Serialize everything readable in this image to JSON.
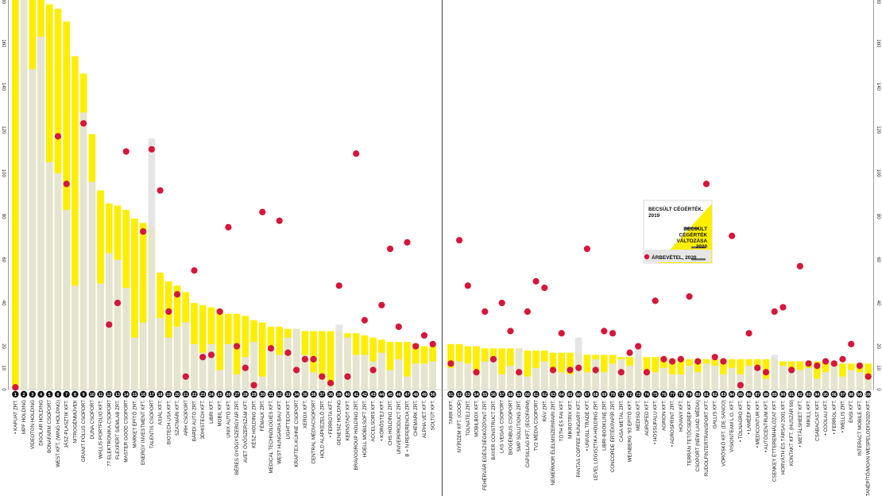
{
  "chart_data": {
    "type": "bar",
    "ylim": [
      0,
      180
    ],
    "yticks": [
      0,
      10,
      20,
      40,
      60,
      80,
      100,
      120,
      140,
      160,
      180
    ],
    "colors": {
      "revenue": "#e3e3e3",
      "value_2019": "#ffee00",
      "value_2020": "#d6163a",
      "divider": "#555555",
      "badge": "#111111"
    },
    "legend": {
      "value_2019": "BECSÜLT CÉGÉRTÉK, 2019",
      "value_2020": "BECSÜLT CÉGÉRTÉK VÁLTOZÁSA 2020",
      "revenue": "ÁRBEVÉTEL, 2020"
    },
    "panels": [
      {
        "start_rank": 1,
        "categories": [
          "• KAPUAT ZRT.",
          "MPF HOLDING",
          "VIDEOTON HOLDING",
          "DIGOLAR HOLDING",
          "BONAFARM CSOPORT",
          "WEST KFT. (WING HOLDING)",
          "JÁSZ-PLASZTIK KFT.",
          "NITROGÉNMŰVEK",
          "GRANIT PÓLUS CSOPORT",
          "DUNA CSOPORT",
          "WALLIS PORTFOLIO KFT.",
          "77 ELEKTRONIKA CSOPORT",
          "FLEXPERT SIEMLAB ZRT.",
          "MASTER GOOD CSOPORT",
          "MARKET ÉPÍTŐ ZRT.",
          "ENERGY INVESTMENT KFT.",
          "TALENTIS CSOPORT",
          "AXIÁL KFT.",
          "BIOTECH USA KFT.",
          "SZATMÁRI KFT.",
          "ARH CSOPORT",
          "BÁRDI AUTÓ ZRT.",
          "3DHISTECH KFT.",
          "LIBRI KFT.",
          "MOBIL KFT.",
          "UNIX AUTÓ KFT.",
          "BÉRES GYÓGYSZERGYÁR ZRT.",
          "AVET ÖVŐSZERSZÁM KFT.",
          "KÉSZ HOLDING ZRT.",
          "FÉMALK ZRT.",
          "MEDICAL TECHNOLOGIES KFT.",
          "WEST HUNGARIA BAU KFT.",
          "LIGHTTECH KFT.",
          "KRAFTEX-KÜHNE CSOPORT",
          "XEROX KFT.",
          "CENTRAL MÉDIACSOPORT",
          "HOLD ALAPKEZELŐ ZRT.",
          "• FERROTA KFT.",
          "GENESIZ HOLDING",
          "KERNSTADT KFT.",
          "BRAVOGROUP HOLDING ZRT.",
          "HOELL MOBILSOFT ZRT.",
          "ACCELSORS KFT.",
          "• KÖRÖSTEJ KFT.",
          "CHS HOLDING ZRT.",
          "UNIVERPRODUCT ZRT.",
          "B + N REFERENCIA ZRT.",
          "CHEMARK ZRT.",
          "ALPHA VET KFT.",
          "SOLTÜT KFT."
        ],
        "revenue": [
          1,
          180,
          148,
          163,
          105,
          100,
          83,
          48,
          128,
          96,
          49,
          63,
          60,
          47,
          24,
          31,
          116,
          33,
          24,
          29,
          31,
          21,
          17,
          21,
          9,
          21,
          7,
          15,
          22,
          6,
          19,
          16,
          24,
          28,
          16,
          8,
          5,
          2,
          30,
          24,
          16,
          16,
          13,
          17,
          9,
          14,
          6,
          12,
          12,
          13
        ],
        "value_2019": [
          180,
          180,
          180,
          180,
          178,
          176,
          170,
          154,
          146,
          118,
          92,
          86,
          85,
          83,
          79,
          77,
          75,
          54,
          50,
          48,
          45,
          40,
          39,
          38,
          37,
          35,
          35,
          34,
          32,
          31,
          29,
          29,
          28,
          28,
          27,
          27,
          27,
          27,
          27,
          26,
          26,
          25,
          24,
          23,
          22,
          22,
          22,
          21,
          20,
          20
        ],
        "value_2020": [
          1,
          180,
          180,
          180,
          180,
          117,
          95,
          180,
          123,
          180,
          180,
          30,
          40,
          110,
          180,
          73,
          111,
          92,
          36,
          44,
          6,
          55,
          15,
          16,
          36,
          75,
          20,
          10,
          2,
          82,
          19,
          78,
          17,
          9,
          14,
          14,
          6,
          3,
          48,
          6,
          109,
          32,
          9,
          39,
          65,
          29,
          68,
          20,
          25,
          21
        ]
      },
      {
        "start_rank": 51,
        "categories": [
          "TARR KFT.",
          "NYÍRZEM KFT. (COOP)",
          "TOLNATEJ ZRT.",
          "MOBILBOX KFT.",
          "FEHÉRVÁR EGÉSZSÉGKÖZPONT ZRT.",
          "BAYER CONSTRUCT ZRT.",
          "LAS VEGAS CSOPORT",
          "BIOGÉNBUS CSOPORT",
          "SMP SOLUTIONS ZRT.",
          "CAPSILLAG KFT. (ECOFARM)",
          "TV2 MÉDIA CSOPORT",
          "RÁV ZRT.",
          "NEMERMOR ÉLELMISZERIPARI ZRT.",
          "TÓTH ÉS FAI KFT.",
          "MIKROTRIX KFT.",
          "PANTAS COFFEE HUNGARY KFT.",
          "• UNIVILL TRADE KFT.",
          "LEVEL LOGISZTIKA HOLDING ZRT.",
          "LIBRI-BOOKLINE ZRT.",
          "CONCORDE ÉRTÉKPAPÍR ZRT.",
          "CASA METAL ZRT.",
          "WEINBERG '93 ÉPÍTŐ KFT.",
          "MEDISO KFT.",
          "AGROFED KFT.",
          "• HOSSUFALU KFT.",
          "AGRION KFT.",
          "• AGROSPRINT ZRT.",
          "HOVANY KFT.",
          "TERRÁN TETŐCSERÉP KFT.",
          "CSOPORT (NEW LAND MÉDIA)",
          "RUDOLFINTERTRANSPORT KFT.",
          "GALLIS KFT.",
          "VÖRÖSKŐ KFT. (DE SANCO)",
          "VISIONTEAM L.O. KFT.",
          "• TOLNAGRO KFT.",
          "• LAMÉÉP KFT.",
          "• MEDICONTUR KFT.",
          "• AUTÓCENTRUM KFT.",
          "CSENKEY ÉTTEREMHÁLÓZAT KFT.",
          "HORVÁTH ÉS TÁRSAI 2001 KFT.",
          "KONTAKT KFT. (HUSZÁR 99)",
          "• METÁLSHEET KFT.",
          "MIKILL KFT.",
          "CSABACAST KFT.",
          "• COOLAU KFT.",
          "• FERROL KFT.",
          "• WELLIS ZRT.",
          "ENSI KFT.",
          "INTERACT MOBILE KFT.",
          "MOBIL MOSTANÉPÍTŐ/MOAN WESPELODIS2020 KFT."
        ],
        "revenue": [
          10,
          13,
          12,
          8,
          13,
          14,
          7,
          11,
          19,
          6,
          10,
          13,
          9,
          8,
          7,
          24,
          8,
          14,
          8,
          12,
          14,
          11,
          19,
          8,
          8,
          10,
          7,
          7,
          11,
          8,
          12,
          11,
          7,
          10,
          7,
          11,
          10,
          5,
          16,
          11,
          9,
          9,
          10,
          5,
          8,
          13,
          6,
          9,
          8,
          5
        ],
        "value_2019": [
          21,
          21,
          20,
          20,
          19,
          19,
          19,
          19,
          19,
          18,
          18,
          18,
          17,
          17,
          17,
          17,
          16,
          16,
          16,
          16,
          15,
          15,
          15,
          15,
          15,
          15,
          14,
          14,
          14,
          14,
          14,
          14,
          14,
          14,
          14,
          14,
          14,
          14,
          14,
          13,
          13,
          13,
          13,
          13,
          13,
          13,
          12,
          12,
          12,
          12
        ],
        "value_2020": [
          12,
          69,
          48,
          8,
          36,
          14,
          40,
          27,
          8,
          36,
          50,
          47,
          9,
          26,
          9,
          10,
          65,
          9,
          27,
          26,
          8,
          17,
          20,
          8,
          41,
          14,
          13,
          14,
          43,
          13,
          95,
          15,
          13,
          71,
          2,
          26,
          10,
          8,
          36,
          38,
          9,
          57,
          12,
          11,
          13,
          12,
          14,
          21,
          11,
          6
        ]
      }
    ]
  }
}
